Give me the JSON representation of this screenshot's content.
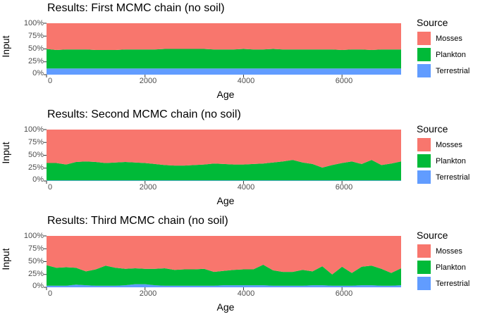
{
  "colors": {
    "Mosses": "#F8766D",
    "Plankton": "#00BA38",
    "Terrestrial": "#619CFF"
  },
  "chart_data": [
    {
      "type": "area",
      "title": "Results: First MCMC chain (no soil)",
      "xlabel": "Age",
      "ylabel": "Input",
      "xlim": [
        0,
        7200
      ],
      "ylim": [
        0,
        1
      ],
      "x_ticks": [
        "0",
        "2000",
        "4000",
        "6000"
      ],
      "y_ticks": [
        "0%",
        "25%",
        "50%",
        "75%",
        "100%"
      ],
      "legend": {
        "title": "Source",
        "position": "right",
        "items": [
          "Mosses",
          "Plankton",
          "Terrestrial"
        ]
      },
      "x": [
        0,
        200,
        400,
        600,
        800,
        1000,
        1200,
        1400,
        1600,
        1800,
        2000,
        2200,
        2400,
        2600,
        2800,
        3000,
        3200,
        3400,
        3600,
        3800,
        4000,
        4200,
        4400,
        4600,
        4800,
        5000,
        5200,
        5400,
        5600,
        5800,
        6000,
        6200,
        6400,
        6600,
        6800,
        7000,
        7200
      ],
      "series": [
        {
          "name": "Terrestrial",
          "values": [
            0.12,
            0.12,
            0.12,
            0.12,
            0.12,
            0.12,
            0.12,
            0.12,
            0.12,
            0.12,
            0.12,
            0.12,
            0.12,
            0.12,
            0.12,
            0.12,
            0.12,
            0.12,
            0.12,
            0.12,
            0.12,
            0.12,
            0.12,
            0.12,
            0.12,
            0.12,
            0.12,
            0.12,
            0.12,
            0.12,
            0.12,
            0.12,
            0.12,
            0.12,
            0.12,
            0.12,
            0.12
          ]
        },
        {
          "name": "Plankton",
          "values": [
            0.38,
            0.36,
            0.37,
            0.37,
            0.37,
            0.36,
            0.36,
            0.36,
            0.37,
            0.37,
            0.37,
            0.37,
            0.38,
            0.38,
            0.38,
            0.38,
            0.38,
            0.37,
            0.37,
            0.37,
            0.38,
            0.37,
            0.37,
            0.38,
            0.37,
            0.37,
            0.37,
            0.37,
            0.37,
            0.37,
            0.36,
            0.37,
            0.37,
            0.36,
            0.37,
            0.37,
            0.37
          ]
        },
        {
          "name": "Mosses",
          "values": [
            0.5,
            0.52,
            0.51,
            0.51,
            0.51,
            0.52,
            0.52,
            0.52,
            0.51,
            0.51,
            0.51,
            0.51,
            0.5,
            0.5,
            0.5,
            0.5,
            0.5,
            0.51,
            0.51,
            0.51,
            0.5,
            0.51,
            0.51,
            0.5,
            0.51,
            0.51,
            0.51,
            0.51,
            0.51,
            0.51,
            0.52,
            0.51,
            0.51,
            0.52,
            0.51,
            0.51,
            0.51
          ]
        }
      ]
    },
    {
      "type": "area",
      "title": "Results: Second MCMC chain (no soil)",
      "xlabel": "Age",
      "ylabel": "Input",
      "xlim": [
        0,
        7200
      ],
      "ylim": [
        0,
        1
      ],
      "x_ticks": [
        "0",
        "2000",
        "4000",
        "6000"
      ],
      "y_ticks": [
        "0%",
        "25%",
        "50%",
        "75%",
        "100%"
      ],
      "legend": {
        "title": "Source",
        "position": "right",
        "items": [
          "Mosses",
          "Plankton",
          "Terrestrial"
        ]
      },
      "x": [
        0,
        200,
        400,
        600,
        800,
        1000,
        1200,
        1400,
        1600,
        1800,
        2000,
        2200,
        2400,
        2600,
        2800,
        3000,
        3200,
        3400,
        3600,
        3800,
        4000,
        4200,
        4400,
        4600,
        4800,
        5000,
        5200,
        5400,
        5600,
        5800,
        6000,
        6200,
        6400,
        6600,
        6800,
        7000,
        7200
      ],
      "series": [
        {
          "name": "Terrestrial",
          "values": [
            0.01,
            0.01,
            0.01,
            0.01,
            0.01,
            0.01,
            0.01,
            0.01,
            0.01,
            0.01,
            0.01,
            0.01,
            0.01,
            0.01,
            0.01,
            0.01,
            0.01,
            0.01,
            0.01,
            0.01,
            0.01,
            0.01,
            0.01,
            0.01,
            0.01,
            0.01,
            0.01,
            0.01,
            0.01,
            0.01,
            0.01,
            0.01,
            0.01,
            0.01,
            0.01,
            0.01,
            0.01
          ]
        },
        {
          "name": "Plankton",
          "values": [
            0.34,
            0.34,
            0.31,
            0.36,
            0.37,
            0.36,
            0.34,
            0.35,
            0.36,
            0.35,
            0.34,
            0.32,
            0.3,
            0.29,
            0.29,
            0.3,
            0.31,
            0.33,
            0.32,
            0.31,
            0.31,
            0.32,
            0.33,
            0.35,
            0.37,
            0.4,
            0.35,
            0.32,
            0.25,
            0.3,
            0.34,
            0.37,
            0.32,
            0.4,
            0.3,
            0.33,
            0.37
          ]
        },
        {
          "name": "Mosses",
          "values": [
            0.65,
            0.65,
            0.68,
            0.63,
            0.62,
            0.63,
            0.65,
            0.64,
            0.63,
            0.64,
            0.65,
            0.67,
            0.69,
            0.7,
            0.7,
            0.69,
            0.68,
            0.66,
            0.67,
            0.68,
            0.68,
            0.67,
            0.66,
            0.64,
            0.62,
            0.59,
            0.64,
            0.67,
            0.74,
            0.69,
            0.65,
            0.62,
            0.67,
            0.59,
            0.69,
            0.66,
            0.62
          ]
        }
      ]
    },
    {
      "type": "area",
      "title": "Results: Third MCMC chain (no soil)",
      "xlabel": "Age",
      "ylabel": "Input",
      "xlim": [
        0,
        7200
      ],
      "ylim": [
        0,
        1
      ],
      "x_ticks": [
        "0",
        "2000",
        "4000",
        "6000"
      ],
      "y_ticks": [
        "0%",
        "25%",
        "50%",
        "75%",
        "100%"
      ],
      "legend": {
        "title": "Source",
        "position": "right",
        "items": [
          "Mosses",
          "Plankton",
          "Terrestrial"
        ]
      },
      "x": [
        0,
        200,
        400,
        600,
        800,
        1000,
        1200,
        1400,
        1600,
        1800,
        2000,
        2200,
        2400,
        2600,
        2800,
        3000,
        3200,
        3400,
        3600,
        3800,
        4000,
        4200,
        4400,
        4600,
        4800,
        5000,
        5200,
        5400,
        5600,
        5800,
        6000,
        6200,
        6400,
        6600,
        6800,
        7000,
        7200
      ],
      "series": [
        {
          "name": "Terrestrial",
          "values": [
            0.03,
            0.03,
            0.03,
            0.05,
            0.04,
            0.03,
            0.03,
            0.03,
            0.04,
            0.06,
            0.06,
            0.04,
            0.03,
            0.03,
            0.03,
            0.03,
            0.03,
            0.03,
            0.04,
            0.04,
            0.04,
            0.04,
            0.04,
            0.03,
            0.03,
            0.03,
            0.03,
            0.04,
            0.04,
            0.03,
            0.03,
            0.03,
            0.04,
            0.04,
            0.03,
            0.03,
            0.04
          ]
        },
        {
          "name": "Plankton",
          "values": [
            0.4,
            0.35,
            0.36,
            0.33,
            0.27,
            0.32,
            0.39,
            0.35,
            0.32,
            0.31,
            0.3,
            0.32,
            0.34,
            0.31,
            0.32,
            0.32,
            0.33,
            0.27,
            0.28,
            0.3,
            0.31,
            0.31,
            0.4,
            0.3,
            0.27,
            0.27,
            0.31,
            0.27,
            0.37,
            0.22,
            0.37,
            0.25,
            0.36,
            0.38,
            0.33,
            0.25,
            0.33
          ]
        },
        {
          "name": "Mosses",
          "values": [
            0.57,
            0.62,
            0.61,
            0.62,
            0.69,
            0.65,
            0.58,
            0.62,
            0.64,
            0.63,
            0.64,
            0.64,
            0.63,
            0.66,
            0.65,
            0.65,
            0.64,
            0.7,
            0.68,
            0.66,
            0.65,
            0.65,
            0.56,
            0.67,
            0.7,
            0.7,
            0.66,
            0.69,
            0.59,
            0.75,
            0.6,
            0.72,
            0.6,
            0.58,
            0.64,
            0.72,
            0.63
          ]
        }
      ]
    }
  ]
}
